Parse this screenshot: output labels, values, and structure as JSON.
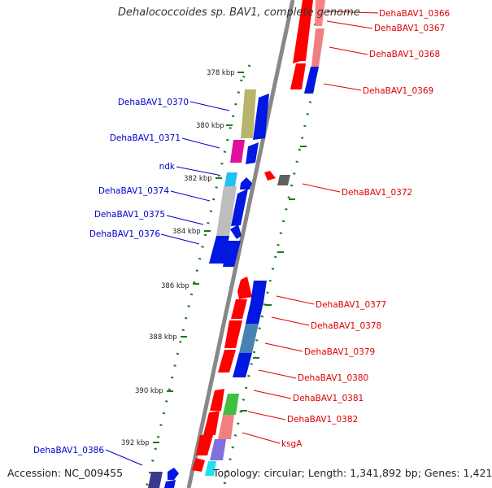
{
  "title": "Dehalococcoides sp. BAV1, complete genome",
  "accession": "Accession: NC_009455",
  "topology": "Topology: circular; Length: 1,341,892 bp; Genes: 1,421",
  "ticks": [
    "378 kbp",
    "380 kbp",
    "382 kbp",
    "384 kbp",
    "386 kbp",
    "388 kbp",
    "390 kbp",
    "392 kbp"
  ],
  "colors": {
    "forward_label": "#0000cc",
    "reverse_label": "#dd0000",
    "backbone": "#888888",
    "gc_dots": "#1a7a1a"
  },
  "genes_left": [
    {
      "label": "DehaBAV1_0370",
      "color": "#b8b46a"
    },
    {
      "label": "DehaBAV1_0371",
      "color": "#e0109a"
    },
    {
      "label": "ndk",
      "color": "#20c0f0"
    },
    {
      "label": "DehaBAV1_0374",
      "color": "#bdbdbd"
    },
    {
      "label": "DehaBAV1_0375",
      "color": "#bdbdbd"
    },
    {
      "label": "DehaBAV1_0376",
      "color": "#0018e0"
    },
    {
      "label": "DehaBAV1_0386",
      "color": "#3a3a8a"
    }
  ],
  "genes_right": [
    {
      "label": "DehaBAV1_0366",
      "color": "#ff0000"
    },
    {
      "label": "DehaBAV1_0367",
      "color": "#ff0000"
    },
    {
      "label": "DehaBAV1_0368",
      "color": "#f08080"
    },
    {
      "label": "DehaBAV1_0369",
      "color": "#0018e0"
    },
    {
      "label": "DehaBAV1_0372",
      "color": "#606060"
    },
    {
      "label": "DehaBAV1_0377",
      "color": "#ff0000"
    },
    {
      "label": "DehaBAV1_0378",
      "color": "#ff0000"
    },
    {
      "label": "DehaBAV1_0379",
      "color": "#4682b4"
    },
    {
      "label": "DehaBAV1_0380",
      "color": "#ff0000"
    },
    {
      "label": "DehaBAV1_0381",
      "color": "#40c040"
    },
    {
      "label": "DehaBAV1_0382",
      "color": "#f08080"
    },
    {
      "label": "ksgA",
      "color": "#8070e0"
    }
  ]
}
